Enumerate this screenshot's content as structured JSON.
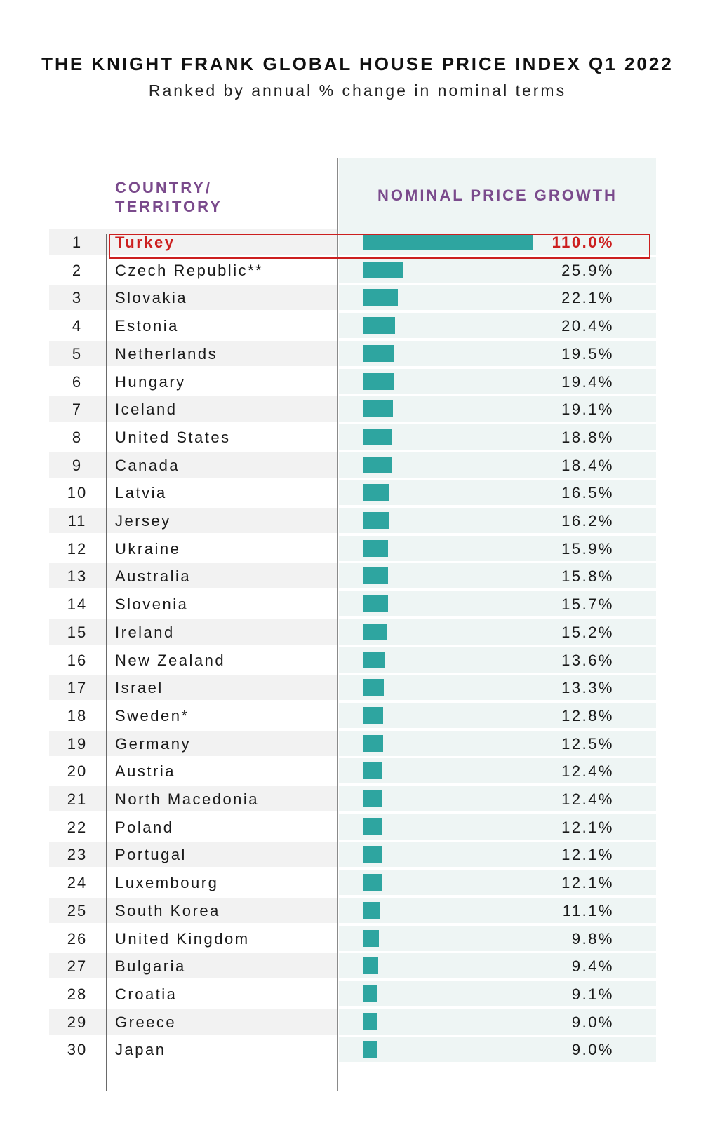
{
  "title": "THE KNIGHT FRANK GLOBAL HOUSE PRICE INDEX Q1 2022",
  "subtitle": "Ranked by annual % change in nominal terms",
  "columns": {
    "country_line1": "COUNTRY/",
    "country_line2": "TERRITORY",
    "growth": "NOMINAL PRICE GROWTH"
  },
  "colors": {
    "bar": "#2ea5a0",
    "header": "#7a4a8c",
    "highlight": "#cc1f1f"
  },
  "chart_data": {
    "type": "bar",
    "title": "THE KNIGHT FRANK GLOBAL HOUSE PRICE INDEX Q1 2022",
    "subtitle": "Ranked by annual % change in nominal terms",
    "xlabel": "NOMINAL PRICE GROWTH",
    "ylabel": "COUNTRY/ TERRITORY",
    "orientation": "horizontal",
    "highlighted_rank": 1,
    "rows": [
      {
        "rank": "1",
        "country": "Turkey",
        "value": 110.0,
        "label": "110.0%"
      },
      {
        "rank": "2",
        "country": "Czech Republic**",
        "value": 25.9,
        "label": "25.9%"
      },
      {
        "rank": "3",
        "country": "Slovakia",
        "value": 22.1,
        "label": "22.1%"
      },
      {
        "rank": "4",
        "country": "Estonia",
        "value": 20.4,
        "label": "20.4%"
      },
      {
        "rank": "5",
        "country": "Netherlands",
        "value": 19.5,
        "label": "19.5%"
      },
      {
        "rank": "6",
        "country": "Hungary",
        "value": 19.4,
        "label": "19.4%"
      },
      {
        "rank": "7",
        "country": "Iceland",
        "value": 19.1,
        "label": "19.1%"
      },
      {
        "rank": "8",
        "country": "United States",
        "value": 18.8,
        "label": "18.8%"
      },
      {
        "rank": "9",
        "country": "Canada",
        "value": 18.4,
        "label": "18.4%"
      },
      {
        "rank": "10",
        "country": "Latvia",
        "value": 16.5,
        "label": "16.5%"
      },
      {
        "rank": "11",
        "country": "Jersey",
        "value": 16.2,
        "label": "16.2%"
      },
      {
        "rank": "12",
        "country": "Ukraine",
        "value": 15.9,
        "label": "15.9%"
      },
      {
        "rank": "13",
        "country": "Australia",
        "value": 15.8,
        "label": "15.8%"
      },
      {
        "rank": "14",
        "country": "Slovenia",
        "value": 15.7,
        "label": "15.7%"
      },
      {
        "rank": "15",
        "country": "Ireland",
        "value": 15.2,
        "label": "15.2%"
      },
      {
        "rank": "16",
        "country": "New Zealand",
        "value": 13.6,
        "label": "13.6%"
      },
      {
        "rank": "17",
        "country": "Israel",
        "value": 13.3,
        "label": "13.3%"
      },
      {
        "rank": "18",
        "country": "Sweden*",
        "value": 12.8,
        "label": "12.8%"
      },
      {
        "rank": "19",
        "country": "Germany",
        "value": 12.5,
        "label": "12.5%"
      },
      {
        "rank": "20",
        "country": "Austria",
        "value": 12.4,
        "label": "12.4%"
      },
      {
        "rank": "21",
        "country": "North Macedonia",
        "value": 12.4,
        "label": "12.4%"
      },
      {
        "rank": "22",
        "country": "Poland",
        "value": 12.1,
        "label": "12.1%"
      },
      {
        "rank": "23",
        "country": "Portugal",
        "value": 12.1,
        "label": "12.1%"
      },
      {
        "rank": "24",
        "country": "Luxembourg",
        "value": 12.1,
        "label": "12.1%"
      },
      {
        "rank": "25",
        "country": "South Korea",
        "value": 11.1,
        "label": "11.1%"
      },
      {
        "rank": "26",
        "country": "United Kingdom",
        "value": 9.8,
        "label": "9.8%"
      },
      {
        "rank": "27",
        "country": "Bulgaria",
        "value": 9.4,
        "label": "9.4%"
      },
      {
        "rank": "28",
        "country": "Croatia",
        "value": 9.1,
        "label": "9.1%"
      },
      {
        "rank": "29",
        "country": "Greece",
        "value": 9.0,
        "label": "9.0%"
      },
      {
        "rank": "30",
        "country": "Japan",
        "value": 9.0,
        "label": "9.0%"
      }
    ]
  }
}
